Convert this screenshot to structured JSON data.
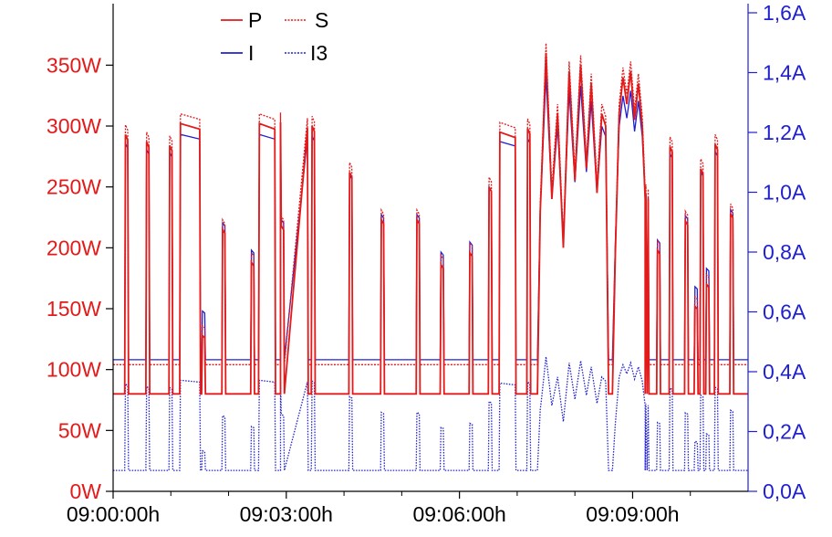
{
  "chart_data": {
    "type": "line",
    "title": "",
    "xlabel": "",
    "ylabel": "",
    "y2label": "",
    "colors": {
      "left_axis": "#e31a1a",
      "right_axis": "#2020d0",
      "p": "#e31a1a",
      "s": "#e31a1a",
      "i": "#2020d0",
      "i3": "#2020d0",
      "axis": "#000000"
    },
    "x_range_s": [
      0,
      660
    ],
    "xticks": [
      {
        "t": 0,
        "label": "09:00:00h"
      },
      {
        "t": 180,
        "label": "09:03:00h"
      },
      {
        "t": 360,
        "label": "09:06:00h"
      },
      {
        "t": 540,
        "label": "09:09:00h"
      }
    ],
    "ylim_left": [
      0,
      375
    ],
    "yticks_left": [
      {
        "v": 0,
        "label": "0W"
      },
      {
        "v": 50,
        "label": "50W"
      },
      {
        "v": 100,
        "label": "100W"
      },
      {
        "v": 150,
        "label": "150W"
      },
      {
        "v": 200,
        "label": "200W"
      },
      {
        "v": 250,
        "label": "250W"
      },
      {
        "v": 300,
        "label": "300W"
      },
      {
        "v": 350,
        "label": "350W"
      }
    ],
    "ylim_right": [
      0,
      1.7
    ],
    "yticks_right": [
      {
        "v": 0.0,
        "label": "0,0A"
      },
      {
        "v": 0.2,
        "label": "0,2A"
      },
      {
        "v": 0.4,
        "label": "0,4A"
      },
      {
        "v": 0.6,
        "label": "0,6A"
      },
      {
        "v": 0.8,
        "label": "0,8A"
      },
      {
        "v": 1.0,
        "label": "1,0A"
      },
      {
        "v": 1.2,
        "label": "1,2A"
      },
      {
        "v": 1.4,
        "label": "1,4A"
      },
      {
        "v": 1.6,
        "label": "1,6A"
      }
    ],
    "legend": {
      "placement": "top-left",
      "items": [
        {
          "key": "p",
          "label": "P",
          "style": "solid"
        },
        {
          "key": "s",
          "label": "S",
          "style": "dotted"
        },
        {
          "key": "i",
          "label": "I",
          "style": "solid"
        },
        {
          "key": "i3",
          "label": "I3",
          "style": "dotted"
        }
      ]
    },
    "baseline": {
      "p": 80,
      "s": 104,
      "i": 0.44,
      "i3": 0.07
    },
    "series": [
      {
        "name": "P",
        "key": "p",
        "unit": "W",
        "axis": "left",
        "events": [
          {
            "t": 14,
            "v": 293
          },
          {
            "t": 36,
            "v": 287
          },
          {
            "t": 60,
            "v": 284
          },
          {
            "t": 80,
            "v": 302,
            "w": 10
          },
          {
            "t": 94,
            "v": 128
          },
          {
            "t": 115,
            "v": 215
          },
          {
            "t": 145,
            "v": 188
          },
          {
            "t": 160,
            "v": 302,
            "w": 8
          },
          {
            "t": 176,
            "v": 218
          },
          {
            "t": 188,
            "v": 303,
            "w": 14
          },
          {
            "t": 208,
            "v": 300
          },
          {
            "t": 247,
            "v": 262
          },
          {
            "t": 280,
            "v": 223
          },
          {
            "t": 317,
            "v": 223
          },
          {
            "t": 342,
            "v": 186
          },
          {
            "t": 372,
            "v": 196
          },
          {
            "t": 392,
            "v": 250
          },
          {
            "t": 410,
            "v": 295,
            "w": 8
          },
          {
            "t": 432,
            "v": 298
          }
        ],
        "busy": [
          {
            "t": 445,
            "v": 250
          },
          {
            "t": 450,
            "v": 360
          },
          {
            "t": 456,
            "v": 240
          },
          {
            "t": 462,
            "v": 310
          },
          {
            "t": 468,
            "v": 200
          },
          {
            "t": 474,
            "v": 345
          },
          {
            "t": 480,
            "v": 255
          },
          {
            "t": 486,
            "v": 350
          },
          {
            "t": 492,
            "v": 265
          },
          {
            "t": 497,
            "v": 335
          },
          {
            "t": 503,
            "v": 245
          },
          {
            "t": 508,
            "v": 310
          }
        ],
        "late": [
          {
            "t": 555,
            "v": 244
          },
          {
            "t": 567,
            "v": 198
          },
          {
            "t": 580,
            "v": 283
          },
          {
            "t": 596,
            "v": 222
          },
          {
            "t": 606,
            "v": 152
          },
          {
            "t": 612,
            "v": 265
          },
          {
            "t": 618,
            "v": 170
          },
          {
            "t": 627,
            "v": 285
          },
          {
            "t": 643,
            "v": 228
          }
        ]
      },
      {
        "name": "S",
        "key": "s",
        "unit": "W",
        "axis": "left",
        "offset": 8
      },
      {
        "name": "I",
        "key": "i",
        "unit": "A",
        "axis": "right",
        "derived_from": "p"
      },
      {
        "name": "I3",
        "key": "i3",
        "unit": "A",
        "axis": "right",
        "derived_from": "p"
      }
    ]
  }
}
